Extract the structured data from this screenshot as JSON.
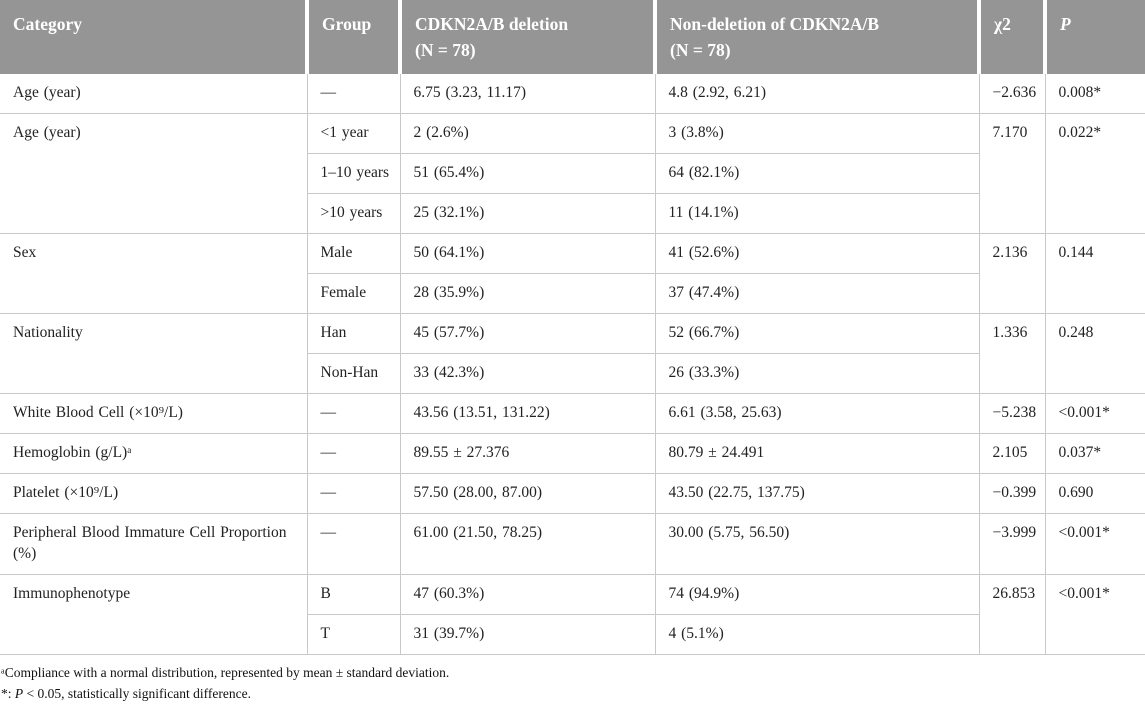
{
  "colors": {
    "header_bg": "#959595",
    "header_text": "#ffffff",
    "grid_border": "#c9c9c9",
    "body_text": "#222222"
  },
  "table": {
    "header": {
      "category": "Category",
      "group": "Group",
      "deletion_line1": "CDKN2A/B deletion",
      "deletion_line2": "(N = 78)",
      "non_deletion_line1": "Non-deletion of CDKN2A/B",
      "non_deletion_line2": "(N = 78)",
      "chi2": "χ2",
      "p": "P"
    },
    "groups": [
      {
        "category": "Age (year)",
        "chi2": "−2.636",
        "p": "0.008*",
        "rows": [
          {
            "group": "—",
            "deletion": "6.75 (3.23, 11.17)",
            "non_deletion": "4.8 (2.92, 6.21)"
          }
        ]
      },
      {
        "category": "Age (year)",
        "chi2": "7.170",
        "p": "0.022*",
        "rows": [
          {
            "group": "<1 year",
            "deletion": "2 (2.6%)",
            "non_deletion": "3 (3.8%)"
          },
          {
            "group": "1–10 years",
            "deletion": "51 (65.4%)",
            "non_deletion": "64 (82.1%)"
          },
          {
            "group": ">10 years",
            "deletion": "25 (32.1%)",
            "non_deletion": "11 (14.1%)"
          }
        ]
      },
      {
        "category": "Sex",
        "chi2": "2.136",
        "p": "0.144",
        "rows": [
          {
            "group": "Male",
            "deletion": "50 (64.1%)",
            "non_deletion": "41 (52.6%)"
          },
          {
            "group": "Female",
            "deletion": "28 (35.9%)",
            "non_deletion": "37 (47.4%)"
          }
        ]
      },
      {
        "category": "Nationality",
        "chi2": "1.336",
        "p": "0.248",
        "rows": [
          {
            "group": "Han",
            "deletion": "45 (57.7%)",
            "non_deletion": "52 (66.7%)"
          },
          {
            "group": "Non-Han",
            "deletion": "33 (42.3%)",
            "non_deletion": "26 (33.3%)"
          }
        ]
      },
      {
        "category": "White Blood Cell (×10⁹/L)",
        "chi2": "−5.238",
        "p": "<0.001*",
        "rows": [
          {
            "group": "—",
            "deletion": "43.56 (13.51, 131.22)",
            "non_deletion": "6.61 (3.58, 25.63)"
          }
        ]
      },
      {
        "category": "Hemoglobin (g/L)ᵃ",
        "chi2": "2.105",
        "p": "0.037*",
        "rows": [
          {
            "group": "—",
            "deletion": "89.55 ± 27.376",
            "non_deletion": "80.79 ± 24.491"
          }
        ]
      },
      {
        "category": "Platelet (×10⁹/L)",
        "chi2": "−0.399",
        "p": "0.690",
        "rows": [
          {
            "group": "—",
            "deletion": "57.50 (28.00, 87.00)",
            "non_deletion": "43.50 (22.75, 137.75)"
          }
        ]
      },
      {
        "category": "Peripheral Blood Immature Cell Proportion (%)",
        "chi2": "−3.999",
        "p": "<0.001*",
        "rows": [
          {
            "group": "—",
            "deletion": "61.00 (21.50, 78.25)",
            "non_deletion": "30.00 (5.75, 56.50)"
          }
        ]
      },
      {
        "category": "Immunophenotype",
        "chi2": "26.853",
        "p": "<0.001*",
        "rows": [
          {
            "group": "B",
            "deletion": "47 (60.3%)",
            "non_deletion": "74 (94.9%)"
          },
          {
            "group": "T",
            "deletion": "31 (39.7%)",
            "non_deletion": "4 (5.1%)"
          }
        ]
      }
    ]
  },
  "footnotes": {
    "normal_distribution": "ᵃCompliance with a normal distribution, represented by mean ± standard deviation.",
    "significance_prefix": "*: ",
    "significance_p": "P",
    "significance_rest": " < 0.05, statistically significant difference."
  }
}
